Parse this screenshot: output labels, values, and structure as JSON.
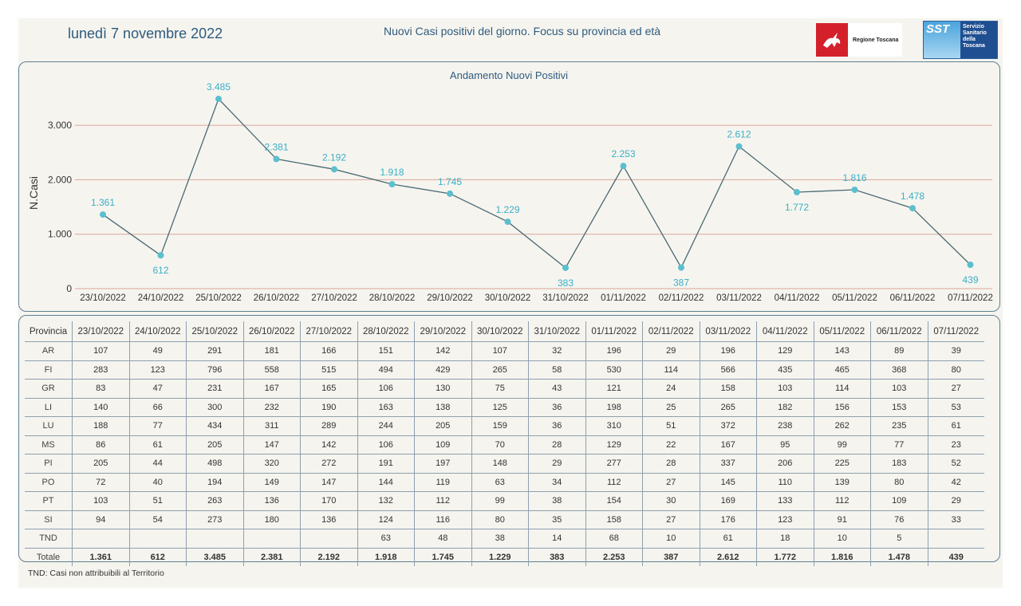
{
  "header": {
    "date": "lunedì 7 novembre 2022",
    "title": "Nuovi Casi positivi del giorno. Focus su provincia ed età",
    "logo_rt_text": "Regione Toscana",
    "logo_sst_mark": "SST",
    "logo_sst_text": [
      "Servizio",
      "Sanitario",
      "della",
      "Toscana"
    ]
  },
  "chart_data": {
    "type": "line",
    "title": "Andamento Nuovi Positivi",
    "ylabel": "N.Casi",
    "xlabel": "",
    "ylim": [
      0,
      3500
    ],
    "yticks": [
      0,
      1000,
      2000,
      3000
    ],
    "ytick_labels": [
      "0",
      "1.000",
      "2.000",
      "3.000"
    ],
    "grid": true,
    "line_color": "#4a6a72",
    "marker_color": "#5bbfcf",
    "label_color": "#3ab0c6",
    "grid_color": "#d9a79a",
    "categories": [
      "23/10/2022",
      "24/10/2022",
      "25/10/2022",
      "26/10/2022",
      "27/10/2022",
      "28/10/2022",
      "29/10/2022",
      "30/10/2022",
      "31/10/2022",
      "01/11/2022",
      "02/11/2022",
      "03/11/2022",
      "04/11/2022",
      "05/11/2022",
      "06/11/2022",
      "07/11/2022"
    ],
    "values": [
      1361,
      612,
      3485,
      2381,
      2192,
      1918,
      1745,
      1229,
      383,
      2253,
      387,
      2612,
      1772,
      1816,
      1478,
      439
    ],
    "value_labels": [
      "1.361",
      "612",
      "3.485",
      "2.381",
      "2.192",
      "1.918",
      "1.745",
      "1.229",
      "383",
      "2.253",
      "387",
      "2.612",
      "1.772",
      "1.816",
      "1.478",
      "439"
    ]
  },
  "table": {
    "header_label": "Provincia",
    "dates": [
      "23/10/2022",
      "24/10/2022",
      "25/10/2022",
      "26/10/2022",
      "27/10/2022",
      "28/10/2022",
      "29/10/2022",
      "30/10/2022",
      "31/10/2022",
      "01/11/2022",
      "02/11/2022",
      "03/11/2022",
      "04/11/2022",
      "05/11/2022",
      "06/11/2022",
      "07/11/2022"
    ],
    "rows": [
      {
        "prov": "AR",
        "vals": [
          "107",
          "49",
          "291",
          "181",
          "166",
          "151",
          "142",
          "107",
          "32",
          "196",
          "29",
          "196",
          "129",
          "143",
          "89",
          "39"
        ]
      },
      {
        "prov": "FI",
        "vals": [
          "283",
          "123",
          "796",
          "558",
          "515",
          "494",
          "429",
          "265",
          "58",
          "530",
          "114",
          "566",
          "435",
          "465",
          "368",
          "80"
        ]
      },
      {
        "prov": "GR",
        "vals": [
          "83",
          "47",
          "231",
          "167",
          "165",
          "106",
          "130",
          "75",
          "43",
          "121",
          "24",
          "158",
          "103",
          "114",
          "103",
          "27"
        ]
      },
      {
        "prov": "LI",
        "vals": [
          "140",
          "66",
          "300",
          "232",
          "190",
          "163",
          "138",
          "125",
          "36",
          "198",
          "25",
          "265",
          "182",
          "156",
          "153",
          "53"
        ]
      },
      {
        "prov": "LU",
        "vals": [
          "188",
          "77",
          "434",
          "311",
          "289",
          "244",
          "205",
          "159",
          "36",
          "310",
          "51",
          "372",
          "238",
          "262",
          "235",
          "61"
        ]
      },
      {
        "prov": "MS",
        "vals": [
          "86",
          "61",
          "205",
          "147",
          "142",
          "106",
          "109",
          "70",
          "28",
          "129",
          "22",
          "167",
          "95",
          "99",
          "77",
          "23"
        ]
      },
      {
        "prov": "PI",
        "vals": [
          "205",
          "44",
          "498",
          "320",
          "272",
          "191",
          "197",
          "148",
          "29",
          "277",
          "28",
          "337",
          "206",
          "225",
          "183",
          "52"
        ]
      },
      {
        "prov": "PO",
        "vals": [
          "72",
          "40",
          "194",
          "149",
          "147",
          "144",
          "119",
          "63",
          "34",
          "112",
          "27",
          "145",
          "110",
          "139",
          "80",
          "42"
        ]
      },
      {
        "prov": "PT",
        "vals": [
          "103",
          "51",
          "263",
          "136",
          "170",
          "132",
          "112",
          "99",
          "38",
          "154",
          "30",
          "169",
          "133",
          "112",
          "109",
          "29"
        ]
      },
      {
        "prov": "SI",
        "vals": [
          "94",
          "54",
          "273",
          "180",
          "136",
          "124",
          "116",
          "80",
          "35",
          "158",
          "27",
          "176",
          "123",
          "91",
          "76",
          "33"
        ]
      },
      {
        "prov": "TND",
        "vals": [
          "",
          "",
          "",
          "",
          "",
          "63",
          "48",
          "38",
          "14",
          "68",
          "10",
          "61",
          "18",
          "10",
          "5",
          ""
        ]
      }
    ],
    "total_label": "Totale",
    "totals": [
      "1.361",
      "612",
      "3.485",
      "2.381",
      "2.192",
      "1.918",
      "1.745",
      "1.229",
      "383",
      "2.253",
      "387",
      "2.612",
      "1.772",
      "1.816",
      "1.478",
      "439"
    ]
  },
  "footnote": "TND:  Casi non attribuibili al Territorio"
}
